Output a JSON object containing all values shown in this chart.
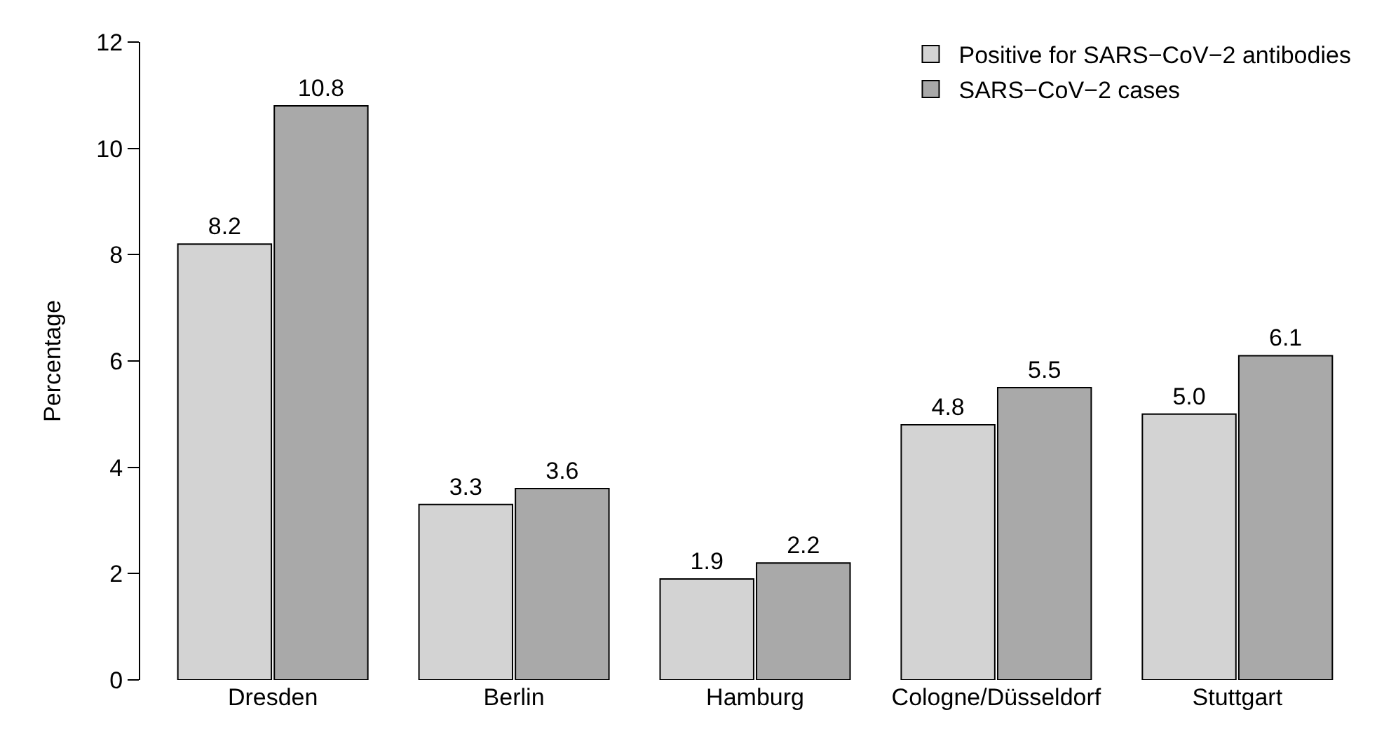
{
  "chart_data": {
    "type": "bar",
    "ylabel": "Percentage",
    "categories": [
      "Dresden",
      "Berlin",
      "Hamburg",
      "Cologne/Düsseldorf",
      "Stuttgart"
    ],
    "series": [
      {
        "name": "Positive for SARS−CoV−2 antibodies",
        "color": "#d3d3d3",
        "values": [
          8.2,
          3.3,
          1.9,
          4.8,
          5.0
        ],
        "value_labels": [
          "8.2",
          "3.3",
          "1.9",
          "4.8",
          "5.0"
        ]
      },
      {
        "name": "SARS−CoV−2 cases",
        "color": "#a9a9a9",
        "values": [
          10.8,
          3.6,
          2.2,
          5.5,
          6.1
        ],
        "value_labels": [
          "10.8",
          "3.6",
          "2.2",
          "5.5",
          "6.1"
        ]
      }
    ],
    "ylim": [
      0,
      12
    ],
    "yticks": [
      0,
      2,
      4,
      6,
      8,
      10,
      12
    ],
    "grid": false,
    "legend": "top right"
  }
}
